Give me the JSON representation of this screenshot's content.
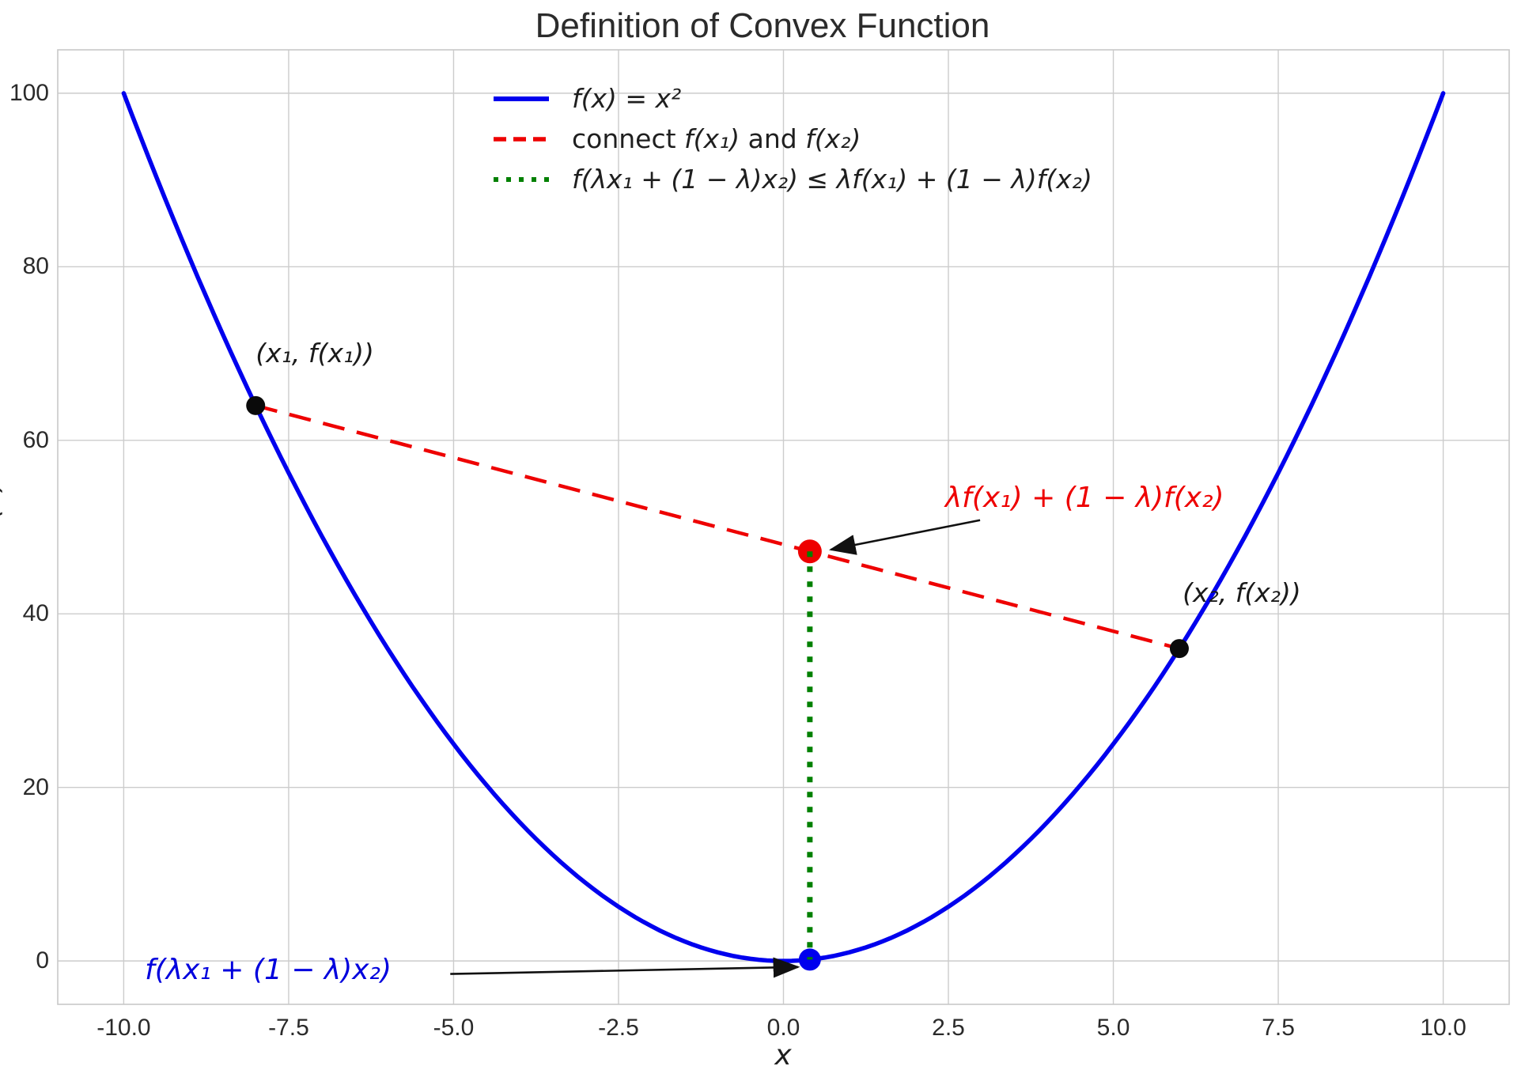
{
  "chart_data": {
    "type": "line",
    "title": "Definition of Convex Function",
    "xlabel": "x",
    "ylabel": "f(x)",
    "xlim": [
      -11,
      11
    ],
    "ylim": [
      -5,
      105
    ],
    "grid": true,
    "grid_color": "#cccccc",
    "spine_color": "#c8c8c8",
    "xticks": {
      "values": [
        -10,
        -7.5,
        -5,
        -2.5,
        0,
        2.5,
        5,
        7.5,
        10
      ],
      "labels": [
        "-10.0",
        "-7.5",
        "-5.0",
        "-2.5",
        "0.0",
        "2.5",
        "5.0",
        "7.5",
        "10.0"
      ]
    },
    "yticks": {
      "values": [
        0,
        20,
        40,
        60,
        80,
        100
      ],
      "labels": [
        "0",
        "20",
        "40",
        "60",
        "80",
        "100"
      ]
    },
    "curve": {
      "fn": "x^2",
      "x_min": -10,
      "x_max": 10,
      "color": "#0000ee",
      "width": 5.5
    },
    "chord": {
      "x1": -8,
      "fx1": 64,
      "x2": 6,
      "fx2": 36,
      "color": "#ee0000",
      "width": 4.5
    },
    "convexity": {
      "lambda": 0.4,
      "x_mid": 0.4,
      "chord_value": 47.2,
      "curve_value": 0.16,
      "drop_line_color": "#008000",
      "drop_line_width": 7
    },
    "points": [
      {
        "name": "point-x1",
        "x": -8,
        "y": 64,
        "color": "#0a0a0a",
        "r": 12
      },
      {
        "name": "point-x2",
        "x": 6,
        "y": 36,
        "color": "#0a0a0a",
        "r": 12
      },
      {
        "name": "chord-point",
        "x": 0.4,
        "y": 47.2,
        "color": "#ee0000",
        "r": 15
      },
      {
        "name": "curve-point",
        "x": 0.4,
        "y": 0.16,
        "color": "#0000ee",
        "r": 14
      }
    ],
    "legend": {
      "position": "upper center-left",
      "items": [
        {
          "swatch": "solid-blue-line",
          "label": "f(x) = x²"
        },
        {
          "swatch": "dashed-red-line",
          "parts": {
            "pre": "connect ",
            "m1": "f(x₁)",
            "mid": " and ",
            "m2": "f(x₂)"
          }
        },
        {
          "swatch": "dotted-green-line",
          "label": "f(λx₁ + (1 − λ)x₂) ≤ λf(x₁) + (1 − λ)f(x₂)"
        }
      ]
    },
    "point_labels": [
      {
        "text": "(x₁, f(x₁))",
        "x": -8.0,
        "y": 71.8
      },
      {
        "text": "(x₂, f(x₂))",
        "x": 6.05,
        "y": 44.2
      }
    ],
    "annotations": [
      {
        "name": "chord-value",
        "text": "λf(x₁) + (1 − λ)f(x₂)",
        "color": "#ee0000",
        "x": 2.45,
        "y": 55.2,
        "arrow_from": [
          2.98,
          50.8
        ],
        "arrow_to": [
          0.72,
          47.4
        ]
      },
      {
        "name": "curve-value",
        "text": "f(λx₁ + (1 − λ)x₂)",
        "color": "#0000dd",
        "x": -9.68,
        "y": 0.8,
        "arrow_from": [
          -5.05,
          -1.5
        ],
        "arrow_to": [
          0.22,
          -0.7
        ]
      }
    ]
  }
}
